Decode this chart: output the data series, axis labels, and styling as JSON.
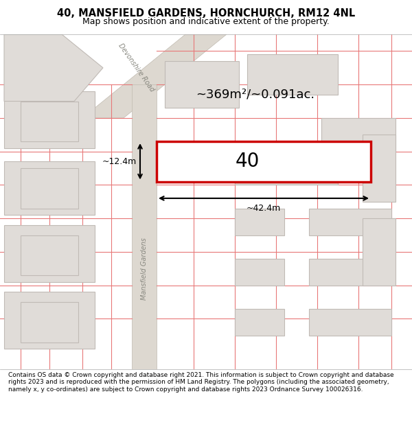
{
  "title_line1": "40, MANSFIELD GARDENS, HORNCHURCH, RM12 4NL",
  "title_line2": "Map shows position and indicative extent of the property.",
  "footer_text": "Contains OS data © Crown copyright and database right 2021. This information is subject to Crown copyright and database rights 2023 and is reproduced with the permission of HM Land Registry. The polygons (including the associated geometry, namely x, y co-ordinates) are subject to Crown copyright and database rights 2023 Ordnance Survey 100026316.",
  "area_label": "~369m²/~0.091ac.",
  "width_label": "~42.4m",
  "height_label": "~12.4m",
  "plot_number": "40",
  "bg_color": "#f5f0f0",
  "map_bg": "#f5f0f0",
  "road_color_light": "#f0d0d0",
  "road_color_dark": "#e0e0e0",
  "building_color": "#e8e8e8",
  "building_edge": "#cccccc",
  "plot_rect_color": "#cc0000",
  "street_label_mansfield": "Mansfield Gardens",
  "street_label_devonshire": "Devonshire Road"
}
